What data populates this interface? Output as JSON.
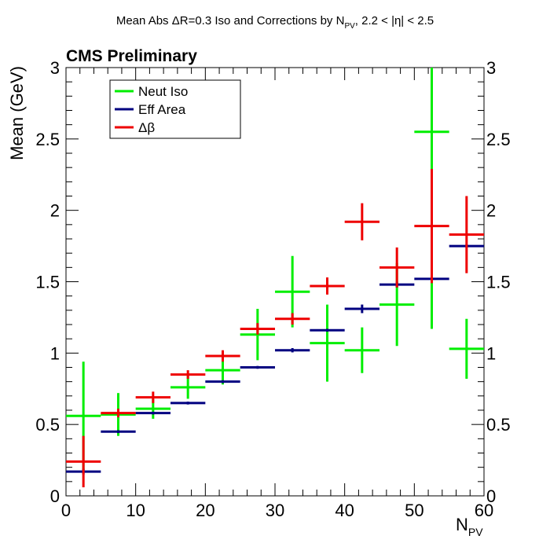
{
  "chart_data": {
    "type": "scatter",
    "title": "Mean Abs ΔR=0.3 Iso and Corrections by N",
    "title_sub": "PV",
    "title_tail": ", 2.2 < |η| < 2.5",
    "label": "CMS Preliminary",
    "ylabel": "Mean (GeV)",
    "xlabel": "N",
    "xlabel_sub": "PV",
    "xlim": [
      0,
      60
    ],
    "ylim": [
      0,
      3
    ],
    "grid": false,
    "legend_position": "top-left",
    "x_ticks": [
      0,
      10,
      20,
      30,
      40,
      50,
      60
    ],
    "x_tick_labels": [
      "0",
      "10",
      "20",
      "30",
      "40",
      "50",
      "60"
    ],
    "y_ticks": [
      0,
      0.5,
      1,
      1.5,
      2,
      2.5,
      3
    ],
    "y_tick_labels": [
      "0",
      "0.5",
      "1",
      "1.5",
      "2",
      "2.5",
      "3"
    ],
    "bin_width": 5,
    "series": [
      {
        "name": "Neut Iso",
        "color": "#00ee00",
        "x": [
          2.5,
          7.5,
          12.5,
          17.5,
          22.5,
          27.5,
          32.5,
          37.5,
          42.5,
          47.5,
          52.5,
          57.5
        ],
        "values": [
          0.56,
          0.57,
          0.61,
          0.76,
          0.88,
          1.13,
          1.43,
          1.07,
          1.02,
          1.34,
          2.55,
          1.03
        ],
        "err": [
          0.38,
          0.15,
          0.07,
          0.08,
          0.1,
          0.18,
          0.25,
          0.27,
          0.16,
          0.29,
          1.38,
          0.21
        ]
      },
      {
        "name": "Eff Area",
        "color": "#000080",
        "x": [
          2.5,
          7.5,
          12.5,
          17.5,
          22.5,
          27.5,
          32.5,
          37.5,
          42.5,
          47.5,
          52.5,
          57.5
        ],
        "values": [
          0.17,
          0.45,
          0.58,
          0.65,
          0.8,
          0.9,
          1.02,
          1.16,
          1.31,
          1.48,
          1.52,
          1.75
        ],
        "err": [
          0.02,
          0.01,
          0.01,
          0.01,
          0.01,
          0.01,
          0.015,
          0.01,
          0.03,
          0.02,
          0.01,
          0.01
        ]
      },
      {
        "name": "Δβ",
        "color": "#ee0000",
        "x": [
          2.5,
          7.5,
          12.5,
          17.5,
          22.5,
          27.5,
          32.5,
          37.5,
          42.5,
          47.5,
          52.5,
          57.5
        ],
        "values": [
          0.24,
          0.58,
          0.69,
          0.85,
          0.98,
          1.17,
          1.24,
          1.47,
          1.92,
          1.6,
          1.89,
          1.83
        ],
        "err": [
          0.18,
          0.03,
          0.04,
          0.03,
          0.04,
          0.04,
          0.04,
          0.06,
          0.13,
          0.14,
          0.4,
          0.27
        ]
      }
    ]
  }
}
